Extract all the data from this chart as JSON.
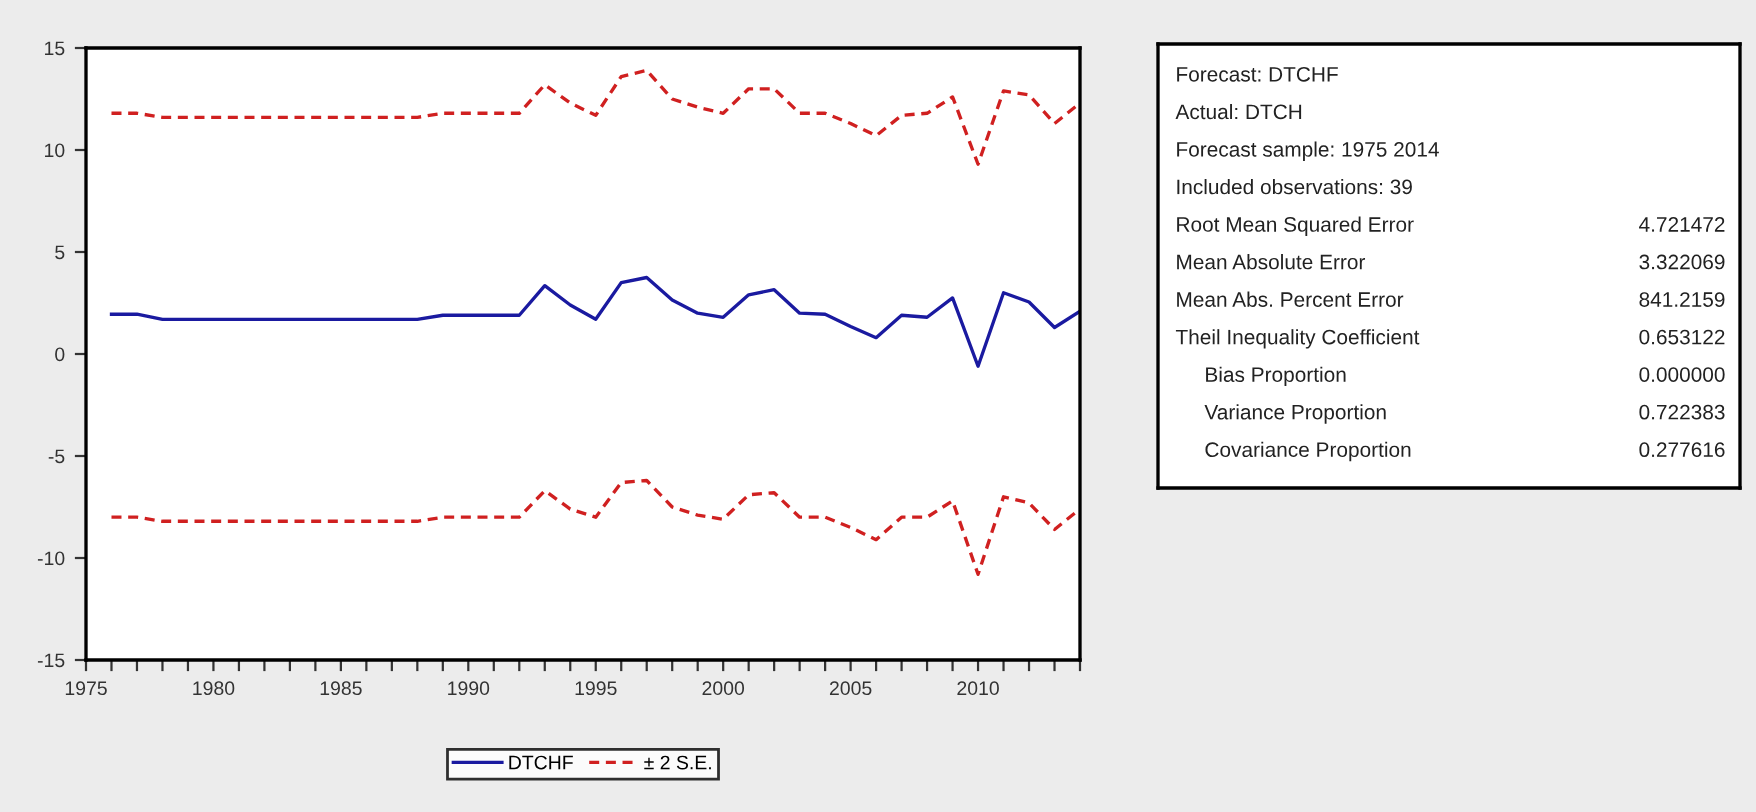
{
  "chart_data": {
    "type": "line",
    "x": [
      1976,
      1977,
      1978,
      1979,
      1980,
      1981,
      1982,
      1983,
      1984,
      1985,
      1986,
      1987,
      1988,
      1989,
      1990,
      1991,
      1992,
      1993,
      1994,
      1995,
      1996,
      1997,
      1998,
      1999,
      2000,
      2001,
      2002,
      2003,
      2004,
      2005,
      2006,
      2007,
      2008,
      2009,
      2010,
      2011,
      2012,
      2013,
      2014
    ],
    "series": [
      {
        "name": "DTCHF",
        "color": "#1a1aa0",
        "line_style": "solid",
        "values": [
          1.95,
          1.95,
          1.7,
          1.7,
          1.7,
          1.7,
          1.7,
          1.7,
          1.7,
          1.7,
          1.7,
          1.7,
          1.7,
          1.9,
          1.9,
          1.9,
          1.9,
          3.35,
          2.4,
          1.7,
          3.5,
          3.75,
          2.65,
          2.0,
          1.8,
          2.9,
          3.15,
          2.0,
          1.95,
          1.35,
          0.8,
          1.9,
          1.8,
          2.75,
          -0.6,
          3.0,
          2.55,
          1.3,
          2.1
        ]
      },
      {
        "name": "± 2 S.E.",
        "color": "#d02020",
        "line_style": "dashed",
        "values": [
          11.8,
          11.8,
          11.6,
          11.6,
          11.6,
          11.6,
          11.6,
          11.6,
          11.6,
          11.6,
          11.6,
          11.6,
          11.6,
          11.8,
          11.8,
          11.8,
          11.8,
          13.2,
          12.3,
          11.7,
          13.6,
          13.9,
          12.5,
          12.1,
          11.8,
          13.0,
          13.0,
          11.8,
          11.8,
          11.3,
          10.7,
          11.7,
          11.8,
          12.6,
          9.3,
          12.9,
          12.7,
          11.3,
          12.3
        ]
      },
      {
        "color": "#d02020",
        "line_style": "dashed",
        "values": [
          -8.0,
          -8.0,
          -8.2,
          -8.2,
          -8.2,
          -8.2,
          -8.2,
          -8.2,
          -8.2,
          -8.2,
          -8.2,
          -8.2,
          -8.2,
          -8.0,
          -8.0,
          -8.0,
          -8.0,
          -6.7,
          -7.6,
          -8.0,
          -6.3,
          -6.2,
          -7.5,
          -7.9,
          -8.1,
          -6.9,
          -6.8,
          -8.0,
          -8.0,
          -8.5,
          -9.1,
          -8.0,
          -8.0,
          -7.2,
          -10.8,
          -7.0,
          -7.3,
          -8.6,
          -7.6
        ]
      }
    ],
    "xlim": [
      1975,
      2014
    ],
    "xticks": [
      1975,
      {
        "value": 1976,
        "label": null
      },
      {
        "value": 1977,
        "label": null
      },
      {
        "value": 1978,
        "label": null
      },
      {
        "value": 1979,
        "label": null
      },
      1980,
      {
        "value": 1981,
        "label": null
      },
      {
        "value": 1982,
        "label": null
      },
      {
        "value": 1983,
        "label": null
      },
      {
        "value": 1984,
        "label": null
      },
      1985,
      {
        "value": 1986,
        "label": null
      },
      {
        "value": 1987,
        "label": null
      },
      {
        "value": 1988,
        "label": null
      },
      {
        "value": 1989,
        "label": null
      },
      1990,
      {
        "value": 1991,
        "label": null
      },
      {
        "value": 1992,
        "label": null
      },
      {
        "value": 1993,
        "label": null
      },
      {
        "value": 1994,
        "label": null
      },
      1995,
      {
        "value": 1996,
        "label": null
      },
      {
        "value": 1997,
        "label": null
      },
      {
        "value": 1998,
        "label": null
      },
      {
        "value": 1999,
        "label": null
      },
      2000,
      {
        "value": 2001,
        "label": null
      },
      {
        "value": 2002,
        "label": null
      },
      {
        "value": 2003,
        "label": null
      },
      {
        "value": 2004,
        "label": null
      },
      2005,
      {
        "value": 2006,
        "label": null
      },
      {
        "value": 2007,
        "label": null
      },
      {
        "value": 2008,
        "label": null
      },
      {
        "value": 2009,
        "label": null
      },
      2010,
      {
        "value": 2011,
        "label": null
      },
      {
        "value": 2012,
        "label": null
      },
      {
        "value": 2013,
        "label": null
      },
      {
        "value": 2014,
        "label": null
      }
    ],
    "ylim": [
      -15,
      15
    ],
    "yticks": [
      -15,
      -10,
      -5,
      0,
      5,
      10,
      15
    ],
    "grid": false,
    "legend": "bottom",
    "annotations": [
      "Forecast: DTCHF",
      "Actual: DTCH",
      "Forecast sample: 1975 2014",
      "Included observations: 39",
      "Root Mean Squared Error",
      "4.721472",
      "Mean Absolute Error",
      "3.322069",
      "Mean Abs. Percent Error",
      "841.2159",
      "Theil Inequality Coefficient",
      "0.653122",
      "     Bias Proportion",
      "0.000000",
      "     Variance Proportion",
      "0.722383",
      "     Covariance Proportion",
      "0.277616"
    ]
  }
}
